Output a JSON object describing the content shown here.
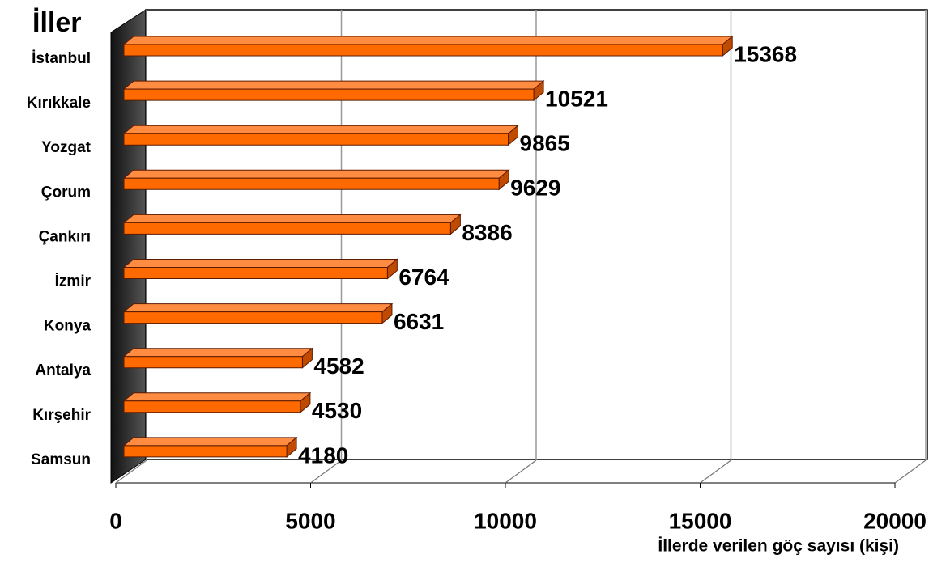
{
  "chart_data": {
    "type": "bar3d_horizontal",
    "title": "İller",
    "x_label": "İllerde verilen göç  sayısı (kişi)",
    "categories": [
      "İstanbul",
      "Kırıkkale",
      "Yozgat",
      "Çorum",
      "Çankırı",
      "İzmir",
      "Konya",
      "Antalya",
      "Kırşehir",
      "Samsun"
    ],
    "values": [
      15368,
      10521,
      9865,
      9629,
      8386,
      6764,
      6631,
      4582,
      4530,
      4180
    ],
    "color": "#ff6a00",
    "xlim": [
      0,
      20000
    ],
    "xticks": [
      0,
      5000,
      10000,
      15000,
      20000
    ],
    "grid": true
  }
}
